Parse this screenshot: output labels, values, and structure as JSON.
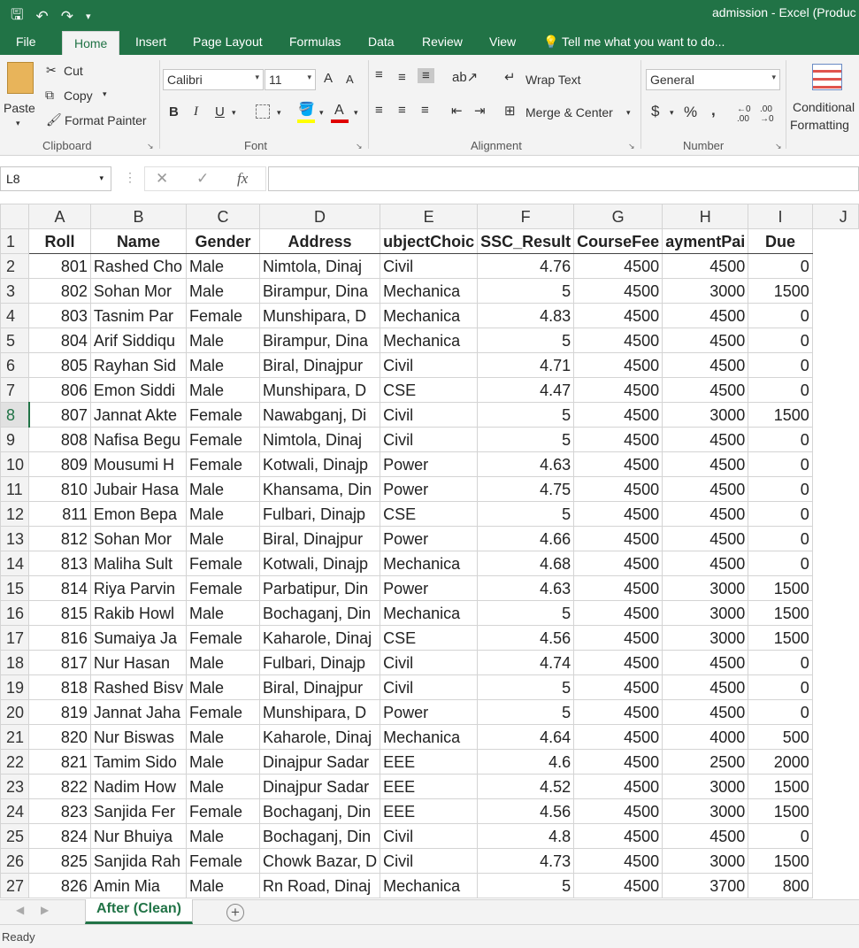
{
  "window": {
    "title": "admission - Excel (Produc"
  },
  "ribbon_tabs": [
    "File",
    "Home",
    "Insert",
    "Page Layout",
    "Formulas",
    "Data",
    "Review",
    "View"
  ],
  "tell_me": "Tell me what you want to do...",
  "clipboard": {
    "paste": "Paste",
    "cut": "Cut",
    "copy": "Copy",
    "format_painter": "Format Painter",
    "label": "Clipboard"
  },
  "font": {
    "name": "Calibri",
    "size": "11",
    "label": "Font",
    "bold": "B",
    "italic": "I",
    "underline": "U",
    "grow": "A",
    "shrink": "A"
  },
  "alignment": {
    "wrap": "Wrap Text",
    "merge": "Merge & Center",
    "label": "Alignment"
  },
  "number": {
    "format": "General",
    "currency": "$",
    "percent": "%",
    "comma": ",",
    "label": "Number"
  },
  "styles": {
    "conditional": "Conditional",
    "formatting": "Formatting"
  },
  "name_box": "L8",
  "formula": "",
  "columns": [
    "A",
    "B",
    "C",
    "D",
    "E",
    "F",
    "G",
    "H",
    "I",
    "J"
  ],
  "headers": [
    "Roll",
    "Name",
    "Gender",
    "Address",
    "ubjectChoic",
    "SSC_Result",
    "CourseFee",
    "aymentPai",
    "Due"
  ],
  "rows": [
    [
      "801",
      "Rashed Cho",
      "Male",
      "Nimtola, Dinaj",
      "Civil",
      "4.76",
      "4500",
      "4500",
      "0"
    ],
    [
      "802",
      "Sohan Mor",
      "Male",
      "Birampur, Dina",
      "Mechanica",
      "5",
      "4500",
      "3000",
      "1500"
    ],
    [
      "803",
      "Tasnim Par",
      "Female",
      "Munshipara, D",
      "Mechanica",
      "4.83",
      "4500",
      "4500",
      "0"
    ],
    [
      "804",
      "Arif Siddiqu",
      "Male",
      "Birampur, Dina",
      "Mechanica",
      "5",
      "4500",
      "4500",
      "0"
    ],
    [
      "805",
      "Rayhan Sid",
      "Male",
      "Biral, Dinajpur",
      "Civil",
      "4.71",
      "4500",
      "4500",
      "0"
    ],
    [
      "806",
      "Emon Siddi",
      "Male",
      "Munshipara, D",
      "CSE",
      "4.47",
      "4500",
      "4500",
      "0"
    ],
    [
      "807",
      "Jannat Akte",
      "Female",
      "Nawabganj, Di",
      "Civil",
      "5",
      "4500",
      "3000",
      "1500"
    ],
    [
      "808",
      "Nafisa Begu",
      "Female",
      "Nimtola, Dinaj",
      "Civil",
      "5",
      "4500",
      "4500",
      "0"
    ],
    [
      "809",
      "Mousumi H",
      "Female",
      "Kotwali, Dinajp",
      "Power",
      "4.63",
      "4500",
      "4500",
      "0"
    ],
    [
      "810",
      "Jubair Hasa",
      "Male",
      "Khansama, Din",
      "Power",
      "4.75",
      "4500",
      "4500",
      "0"
    ],
    [
      "811",
      "Emon Bepa",
      "Male",
      "Fulbari, Dinajp",
      "CSE",
      "5",
      "4500",
      "4500",
      "0"
    ],
    [
      "812",
      "Sohan Mor",
      "Male",
      "Biral, Dinajpur",
      "Power",
      "4.66",
      "4500",
      "4500",
      "0"
    ],
    [
      "813",
      "Maliha Sult",
      "Female",
      "Kotwali, Dinajp",
      "Mechanica",
      "4.68",
      "4500",
      "4500",
      "0"
    ],
    [
      "814",
      "Riya Parvin",
      "Female",
      "Parbatipur, Din",
      "Power",
      "4.63",
      "4500",
      "3000",
      "1500"
    ],
    [
      "815",
      "Rakib Howl",
      "Male",
      "Bochaganj, Din",
      "Mechanica",
      "5",
      "4500",
      "3000",
      "1500"
    ],
    [
      "816",
      "Sumaiya Ja",
      "Female",
      "Kaharole, Dinaj",
      "CSE",
      "4.56",
      "4500",
      "3000",
      "1500"
    ],
    [
      "817",
      "Nur Hasan",
      "Male",
      "Fulbari, Dinajp",
      "Civil",
      "4.74",
      "4500",
      "4500",
      "0"
    ],
    [
      "818",
      "Rashed Bisv",
      "Male",
      "Biral, Dinajpur",
      "Civil",
      "5",
      "4500",
      "4500",
      "0"
    ],
    [
      "819",
      "Jannat Jaha",
      "Female",
      "Munshipara, D",
      "Power",
      "5",
      "4500",
      "4500",
      "0"
    ],
    [
      "820",
      "Nur Biswas",
      "Male",
      "Kaharole, Dinaj",
      "Mechanica",
      "4.64",
      "4500",
      "4000",
      "500"
    ],
    [
      "821",
      "Tamim Sido",
      "Male",
      "Dinajpur Sadar",
      "EEE",
      "4.6",
      "4500",
      "2500",
      "2000"
    ],
    [
      "822",
      "Nadim How",
      "Male",
      "Dinajpur Sadar",
      "EEE",
      "4.52",
      "4500",
      "3000",
      "1500"
    ],
    [
      "823",
      "Sanjida Fer",
      "Female",
      "Bochaganj, Din",
      "EEE",
      "4.56",
      "4500",
      "3000",
      "1500"
    ],
    [
      "824",
      "Nur Bhuiya",
      "Male",
      "Bochaganj, Din",
      "Civil",
      "4.8",
      "4500",
      "4500",
      "0"
    ],
    [
      "825",
      "Sanjida Rah",
      "Female",
      "Chowk Bazar, D",
      "Civil",
      "4.73",
      "4500",
      "3000",
      "1500"
    ],
    [
      "826",
      "Amin Mia",
      "Male",
      "Rn Road, Dinaj",
      "Mechanica",
      "5",
      "4500",
      "3700",
      "800"
    ]
  ],
  "sheet_tab": "After (Clean)",
  "status": "Ready"
}
